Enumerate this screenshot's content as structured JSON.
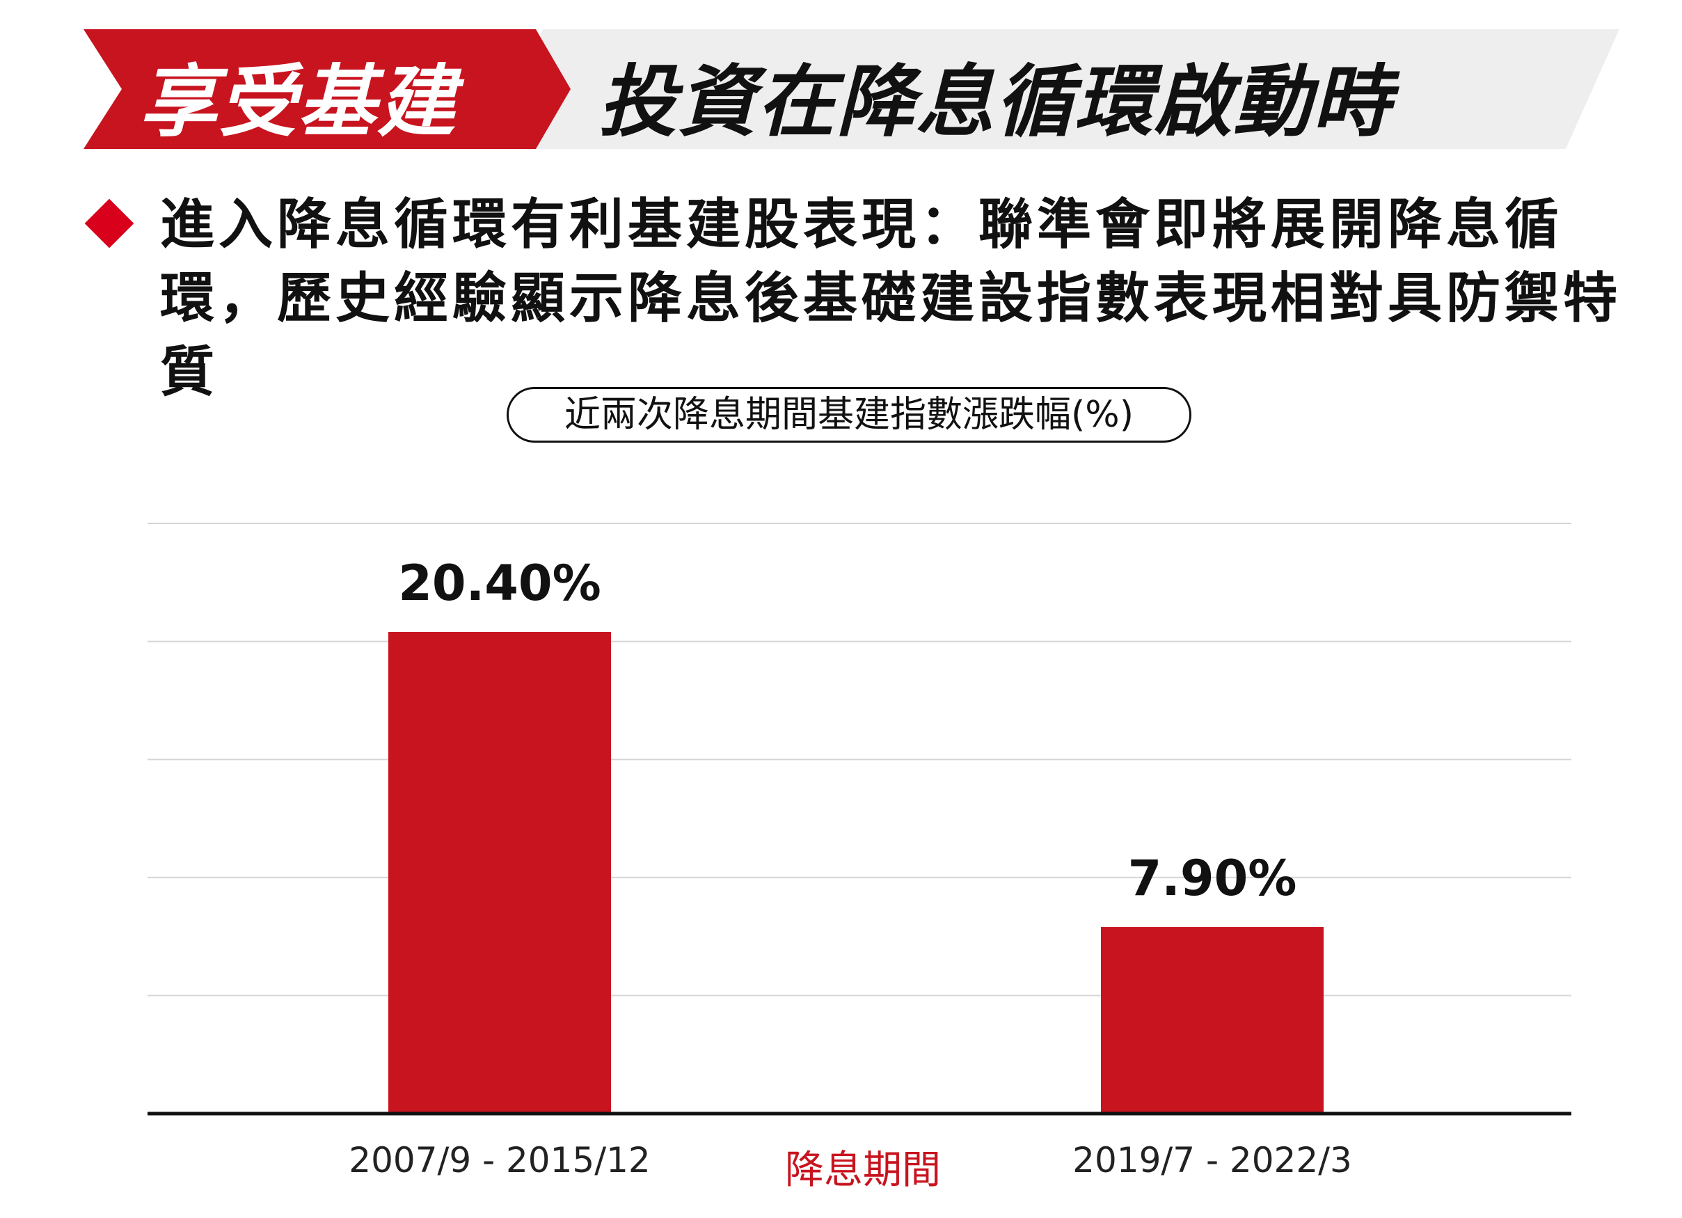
{
  "banner": {
    "red_text": "享受基建",
    "grey_text": "投資在降息循環啟動時",
    "colors": {
      "red": "#c8141f",
      "grey": "#eeeeee"
    }
  },
  "bullet": {
    "text": "進入降息循環有利基建股表現：聯準會即將展開降息循環，歷史經驗顯示降息後基礎建設指數表現相對具防禦特質",
    "icon": "diamond-icon"
  },
  "chart_data": {
    "type": "bar",
    "title": "近兩次降息期間基建指數漲跌幅(%)",
    "xlabel": "降息期間",
    "ylabel": "",
    "categories": [
      "2007/9 - 2015/12",
      "2019/7 - 2022/3"
    ],
    "values": [
      20.4,
      7.9
    ],
    "data_labels": [
      "20.40%",
      "7.90%"
    ],
    "ylim": [
      0,
      25
    ],
    "grid": true,
    "bar_color": "#c8141f"
  }
}
